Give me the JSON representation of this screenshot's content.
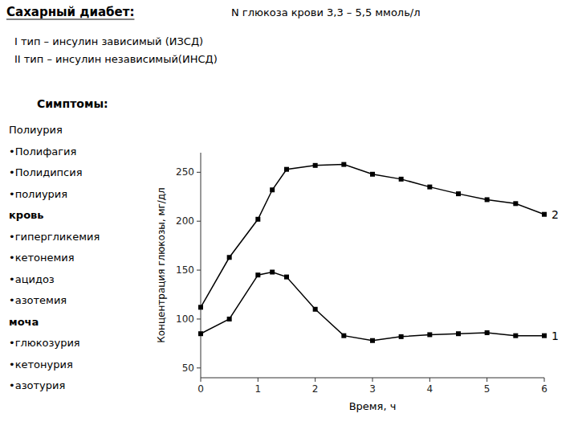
{
  "chart_data": {
    "type": "line",
    "title": "Сахарный диабет:",
    "subtitle": "N  глюкоза крови 3,3 – 5,5 ммоль/л",
    "annotations": [
      " I тип – инсулин зависимый (ИЗСД)",
      " II тип – инсулин независимый(ИНСД)",
      {
        "title": "Симптомы:",
        "groups": [
          {
            "items": [
              "Полиурия",
              "•Полифагия",
              "•Полидипсия",
              "•полиурия"
            ]
          },
          {
            "heading": "кровь",
            "items": [
              "•гипергликемия",
              "•кетонемия",
              "•ацидоз",
              "•азотемия"
            ]
          },
          {
            "heading": "моча",
            "items": [
              "•глюкозурия",
              "•кетонурия",
              "•азотурия"
            ]
          }
        ]
      }
    ],
    "x_label": "Время, ч",
    "y_label": "Концентрация глюкозы, мг/дл",
    "x": [
      0,
      0.5,
      1.0,
      1.25,
      1.5,
      2.0,
      2.5,
      3.0,
      3.5,
      4.0,
      4.5,
      5.0,
      5.5,
      6.0
    ],
    "series": [
      {
        "name": "1",
        "color": "#000000",
        "marker": "square",
        "values": [
          85,
          100,
          145,
          148,
          143,
          110,
          83,
          78,
          82,
          84,
          85,
          86,
          83,
          83
        ]
      },
      {
        "name": "2",
        "color": "#000000",
        "marker": "square",
        "values": [
          112,
          163,
          202,
          232,
          253,
          257,
          258,
          248,
          243,
          235,
          228,
          222,
          218,
          207
        ]
      }
    ],
    "xlim": [
      0,
      6
    ],
    "ylim": [
      40,
      270
    ],
    "xticks": [
      0,
      1,
      2,
      3,
      4,
      5,
      6
    ],
    "yticks": [
      50,
      100,
      150,
      200,
      250
    ]
  }
}
